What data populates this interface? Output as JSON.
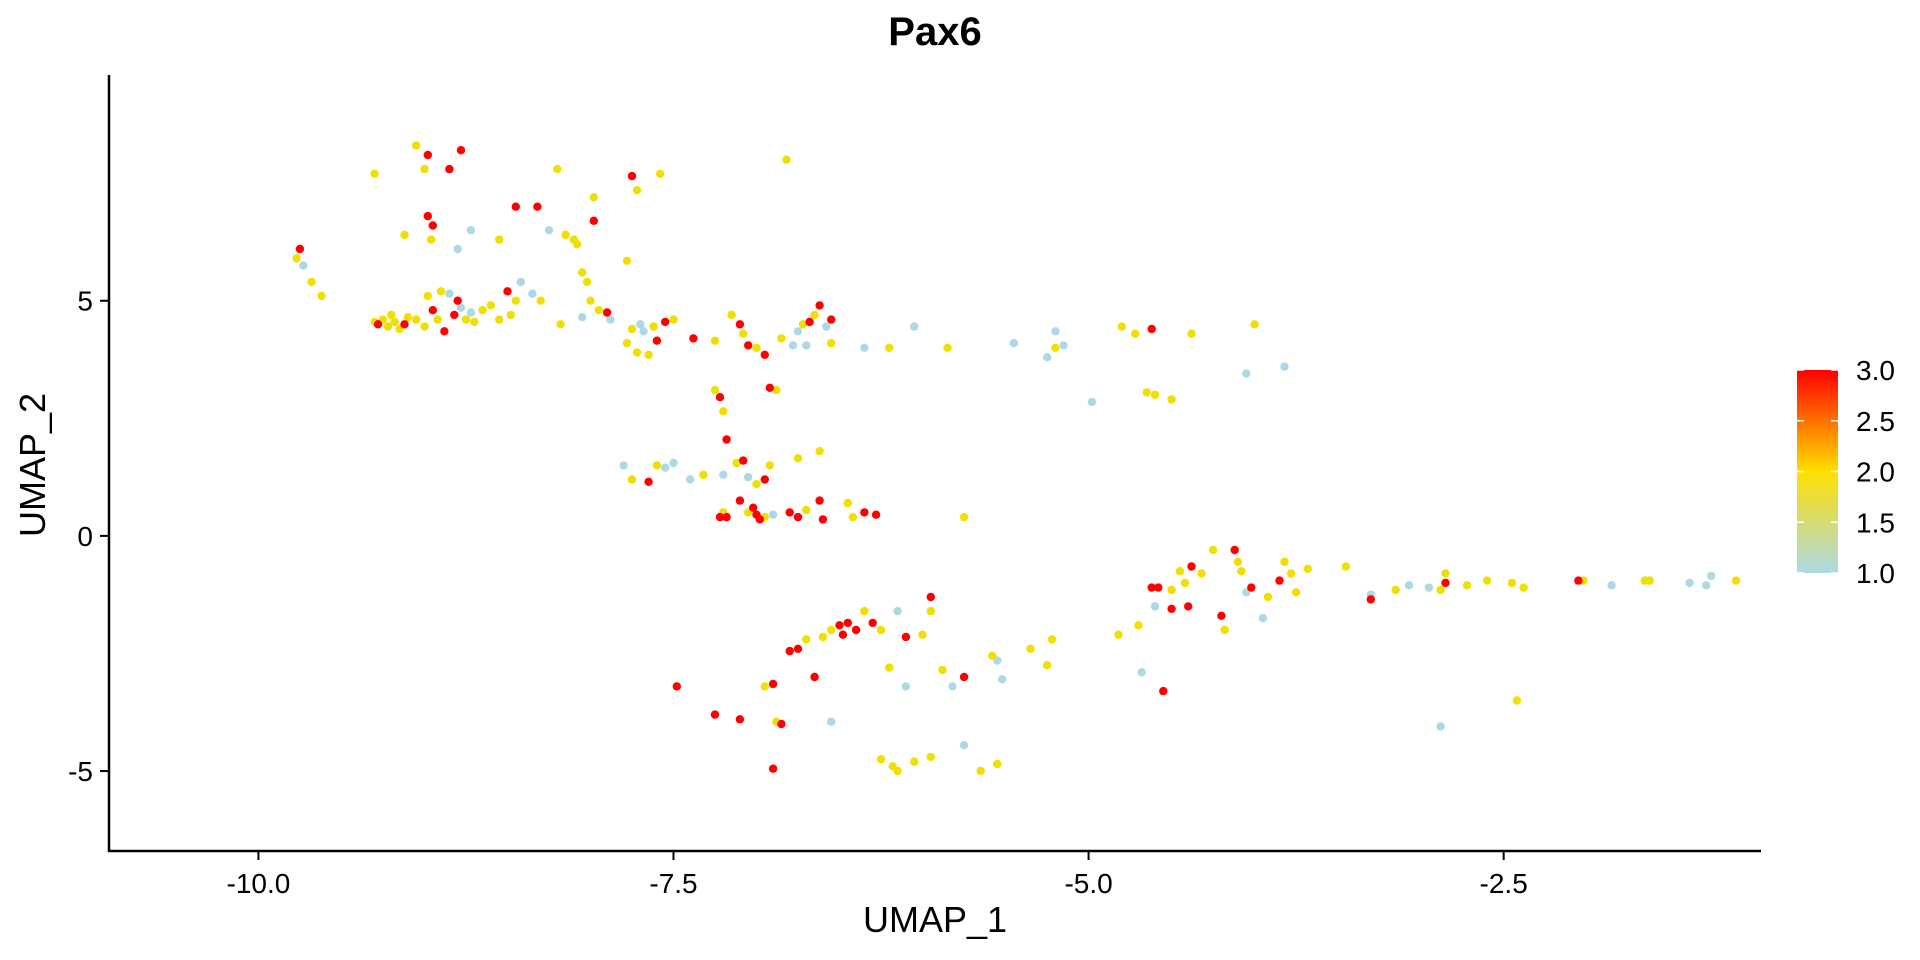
{
  "chart_data": {
    "type": "scatter",
    "title": "Pax6",
    "xlabel": "UMAP_1",
    "ylabel": "UMAP_2",
    "xlim": [
      -10.9,
      -0.95
    ],
    "ylim": [
      -6.7,
      9.8
    ],
    "x_ticks": [
      -10.0,
      -7.5,
      -5.0,
      -2.5
    ],
    "x_tick_labels": [
      "-10.0",
      "-7.5",
      "-5.0",
      "-2.5"
    ],
    "y_ticks": [
      -5,
      0,
      5
    ],
    "y_tick_labels": [
      "-5",
      "0",
      "5"
    ],
    "grid": false,
    "legend": {
      "placement": "right",
      "type": "colorbar",
      "min": 1.0,
      "max": 3.0,
      "tick_values": [
        3.0,
        2.5,
        2.0,
        1.5,
        1.0
      ],
      "tick_labels": [
        "3.0",
        "2.5",
        "2.0",
        "1.5",
        "1.0"
      ],
      "colors": [
        "#add8e6",
        "#ffe000",
        "#ff0000"
      ]
    },
    "point_colors": {
      "low": "#add8e6",
      "mid": "#f0e000",
      "high": "#ff0000"
    },
    "points": [
      {
        "x": -9.77,
        "y": 5.9,
        "v": 2
      },
      {
        "x": -9.75,
        "y": 6.1,
        "v": 3
      },
      {
        "x": -9.73,
        "y": 5.75,
        "v": 1
      },
      {
        "x": -9.68,
        "y": 5.4,
        "v": 2
      },
      {
        "x": -9.62,
        "y": 5.1,
        "v": 2
      },
      {
        "x": -9.3,
        "y": 4.55,
        "v": 2
      },
      {
        "x": -9.28,
        "y": 4.5,
        "v": 3
      },
      {
        "x": -9.25,
        "y": 4.6,
        "v": 2
      },
      {
        "x": -9.22,
        "y": 4.45,
        "v": 2
      },
      {
        "x": -9.2,
        "y": 4.7,
        "v": 2
      },
      {
        "x": -9.18,
        "y": 4.55,
        "v": 2
      },
      {
        "x": -9.15,
        "y": 4.4,
        "v": 2
      },
      {
        "x": -9.12,
        "y": 4.5,
        "v": 3
      },
      {
        "x": -9.1,
        "y": 4.65,
        "v": 2
      },
      {
        "x": -9.05,
        "y": 4.6,
        "v": 2
      },
      {
        "x": -9.0,
        "y": 4.45,
        "v": 2
      },
      {
        "x": -8.98,
        "y": 5.1,
        "v": 2
      },
      {
        "x": -8.95,
        "y": 4.8,
        "v": 3
      },
      {
        "x": -8.92,
        "y": 4.6,
        "v": 2
      },
      {
        "x": -8.9,
        "y": 5.2,
        "v": 2
      },
      {
        "x": -8.88,
        "y": 4.35,
        "v": 3
      },
      {
        "x": -8.85,
        "y": 5.15,
        "v": 1
      },
      {
        "x": -8.82,
        "y": 4.7,
        "v": 3
      },
      {
        "x": -8.8,
        "y": 5.0,
        "v": 3
      },
      {
        "x": -8.78,
        "y": 4.85,
        "v": 1
      },
      {
        "x": -8.75,
        "y": 4.6,
        "v": 2
      },
      {
        "x": -8.72,
        "y": 4.75,
        "v": 1
      },
      {
        "x": -8.7,
        "y": 4.55,
        "v": 2
      },
      {
        "x": -8.65,
        "y": 4.8,
        "v": 2
      },
      {
        "x": -8.6,
        "y": 4.9,
        "v": 2
      },
      {
        "x": -8.55,
        "y": 4.6,
        "v": 2
      },
      {
        "x": -8.5,
        "y": 5.2,
        "v": 3
      },
      {
        "x": -8.48,
        "y": 4.7,
        "v": 2
      },
      {
        "x": -8.45,
        "y": 5.0,
        "v": 2
      },
      {
        "x": -8.42,
        "y": 5.4,
        "v": 1
      },
      {
        "x": -8.35,
        "y": 5.15,
        "v": 1
      },
      {
        "x": -8.3,
        "y": 5.0,
        "v": 2
      },
      {
        "x": -9.3,
        "y": 7.7,
        "v": 2
      },
      {
        "x": -9.05,
        "y": 8.3,
        "v": 2
      },
      {
        "x": -9.0,
        "y": 7.8,
        "v": 2
      },
      {
        "x": -8.98,
        "y": 8.1,
        "v": 3
      },
      {
        "x": -8.85,
        "y": 7.8,
        "v": 3
      },
      {
        "x": -8.78,
        "y": 8.2,
        "v": 3
      },
      {
        "x": -9.12,
        "y": 6.4,
        "v": 2
      },
      {
        "x": -8.98,
        "y": 6.8,
        "v": 3
      },
      {
        "x": -8.95,
        "y": 6.6,
        "v": 3
      },
      {
        "x": -8.96,
        "y": 6.3,
        "v": 2
      },
      {
        "x": -8.8,
        "y": 6.1,
        "v": 1
      },
      {
        "x": -8.72,
        "y": 6.5,
        "v": 1
      },
      {
        "x": -8.55,
        "y": 6.3,
        "v": 2
      },
      {
        "x": -8.45,
        "y": 7.0,
        "v": 3
      },
      {
        "x": -8.32,
        "y": 7.0,
        "v": 3
      },
      {
        "x": -8.25,
        "y": 6.5,
        "v": 1
      },
      {
        "x": -8.2,
        "y": 7.8,
        "v": 2
      },
      {
        "x": -8.15,
        "y": 6.4,
        "v": 2
      },
      {
        "x": -8.1,
        "y": 6.3,
        "v": 2
      },
      {
        "x": -8.08,
        "y": 6.2,
        "v": 2
      },
      {
        "x": -8.05,
        "y": 5.6,
        "v": 2
      },
      {
        "x": -8.02,
        "y": 5.4,
        "v": 2
      },
      {
        "x": -7.98,
        "y": 7.2,
        "v": 2
      },
      {
        "x": -7.98,
        "y": 6.7,
        "v": 3
      },
      {
        "x": -8.0,
        "y": 5.0,
        "v": 2
      },
      {
        "x": -7.95,
        "y": 4.8,
        "v": 2
      },
      {
        "x": -8.18,
        "y": 4.5,
        "v": 2
      },
      {
        "x": -8.05,
        "y": 4.65,
        "v": 1
      },
      {
        "x": -7.9,
        "y": 4.75,
        "v": 3
      },
      {
        "x": -7.88,
        "y": 4.6,
        "v": 1
      },
      {
        "x": -7.78,
        "y": 5.85,
        "v": 2
      },
      {
        "x": -7.75,
        "y": 7.65,
        "v": 3
      },
      {
        "x": -7.72,
        "y": 7.35,
        "v": 2
      },
      {
        "x": -7.58,
        "y": 7.7,
        "v": 2
      },
      {
        "x": -6.82,
        "y": 8.0,
        "v": 2
      },
      {
        "x": -7.78,
        "y": 4.1,
        "v": 2
      },
      {
        "x": -7.75,
        "y": 4.4,
        "v": 2
      },
      {
        "x": -7.72,
        "y": 3.9,
        "v": 2
      },
      {
        "x": -7.7,
        "y": 4.5,
        "v": 1
      },
      {
        "x": -7.68,
        "y": 4.35,
        "v": 1
      },
      {
        "x": -7.65,
        "y": 3.85,
        "v": 2
      },
      {
        "x": -7.62,
        "y": 4.45,
        "v": 2
      },
      {
        "x": -7.6,
        "y": 4.15,
        "v": 3
      },
      {
        "x": -7.55,
        "y": 4.55,
        "v": 3
      },
      {
        "x": -7.5,
        "y": 4.6,
        "v": 2
      },
      {
        "x": -7.38,
        "y": 4.2,
        "v": 3
      },
      {
        "x": -7.25,
        "y": 4.15,
        "v": 2
      },
      {
        "x": -7.15,
        "y": 4.7,
        "v": 2
      },
      {
        "x": -7.1,
        "y": 4.5,
        "v": 3
      },
      {
        "x": -7.08,
        "y": 4.3,
        "v": 2
      },
      {
        "x": -7.05,
        "y": 4.05,
        "v": 3
      },
      {
        "x": -7.0,
        "y": 4.0,
        "v": 2
      },
      {
        "x": -6.95,
        "y": 3.85,
        "v": 3
      },
      {
        "x": -6.85,
        "y": 4.2,
        "v": 2
      },
      {
        "x": -6.78,
        "y": 4.05,
        "v": 1
      },
      {
        "x": -6.75,
        "y": 4.35,
        "v": 1
      },
      {
        "x": -6.72,
        "y": 4.5,
        "v": 2
      },
      {
        "x": -6.7,
        "y": 4.05,
        "v": 1
      },
      {
        "x": -6.68,
        "y": 4.55,
        "v": 3
      },
      {
        "x": -6.65,
        "y": 4.7,
        "v": 2
      },
      {
        "x": -6.62,
        "y": 4.9,
        "v": 3
      },
      {
        "x": -6.55,
        "y": 4.6,
        "v": 3
      },
      {
        "x": -6.58,
        "y": 4.45,
        "v": 1
      },
      {
        "x": -6.55,
        "y": 4.1,
        "v": 2
      },
      {
        "x": -6.35,
        "y": 4.0,
        "v": 1
      },
      {
        "x": -6.2,
        "y": 4.0,
        "v": 2
      },
      {
        "x": -6.05,
        "y": 4.45,
        "v": 1
      },
      {
        "x": -5.85,
        "y": 4.0,
        "v": 2
      },
      {
        "x": -5.45,
        "y": 4.1,
        "v": 1
      },
      {
        "x": -5.25,
        "y": 3.8,
        "v": 1
      },
      {
        "x": -5.2,
        "y": 4.35,
        "v": 1
      },
      {
        "x": -5.2,
        "y": 4.0,
        "v": 2
      },
      {
        "x": -5.15,
        "y": 4.05,
        "v": 1
      },
      {
        "x": -4.98,
        "y": 2.85,
        "v": 1
      },
      {
        "x": -4.8,
        "y": 4.45,
        "v": 2
      },
      {
        "x": -4.72,
        "y": 4.3,
        "v": 2
      },
      {
        "x": -4.62,
        "y": 4.4,
        "v": 3
      },
      {
        "x": -4.65,
        "y": 3.05,
        "v": 2
      },
      {
        "x": -4.6,
        "y": 3.0,
        "v": 2
      },
      {
        "x": -4.5,
        "y": 2.9,
        "v": 2
      },
      {
        "x": -4.38,
        "y": 4.3,
        "v": 2
      },
      {
        "x": -4.0,
        "y": 4.5,
        "v": 2
      },
      {
        "x": -4.05,
        "y": 3.45,
        "v": 1
      },
      {
        "x": -3.82,
        "y": 3.6,
        "v": 1
      },
      {
        "x": -7.25,
        "y": 3.1,
        "v": 2
      },
      {
        "x": -7.22,
        "y": 2.95,
        "v": 3
      },
      {
        "x": -7.2,
        "y": 2.65,
        "v": 2
      },
      {
        "x": -7.18,
        "y": 2.05,
        "v": 3
      },
      {
        "x": -6.92,
        "y": 3.15,
        "v": 3
      },
      {
        "x": -6.88,
        "y": 3.1,
        "v": 2
      },
      {
        "x": -7.8,
        "y": 1.5,
        "v": 1
      },
      {
        "x": -7.75,
        "y": 1.2,
        "v": 2
      },
      {
        "x": -7.65,
        "y": 1.15,
        "v": 3
      },
      {
        "x": -7.6,
        "y": 1.5,
        "v": 2
      },
      {
        "x": -7.55,
        "y": 1.45,
        "v": 1
      },
      {
        "x": -7.5,
        "y": 1.55,
        "v": 1
      },
      {
        "x": -7.4,
        "y": 1.2,
        "v": 1
      },
      {
        "x": -7.32,
        "y": 1.3,
        "v": 2
      },
      {
        "x": -7.2,
        "y": 1.3,
        "v": 1
      },
      {
        "x": -7.12,
        "y": 1.55,
        "v": 2
      },
      {
        "x": -7.08,
        "y": 1.6,
        "v": 3
      },
      {
        "x": -7.05,
        "y": 1.25,
        "v": 1
      },
      {
        "x": -7.0,
        "y": 1.1,
        "v": 2
      },
      {
        "x": -6.95,
        "y": 1.2,
        "v": 3
      },
      {
        "x": -6.92,
        "y": 1.5,
        "v": 2
      },
      {
        "x": -6.75,
        "y": 1.65,
        "v": 2
      },
      {
        "x": -6.62,
        "y": 1.8,
        "v": 2
      },
      {
        "x": -7.22,
        "y": 0.4,
        "v": 3
      },
      {
        "x": -7.2,
        "y": 0.5,
        "v": 2
      },
      {
        "x": -7.18,
        "y": 0.4,
        "v": 3
      },
      {
        "x": -7.1,
        "y": 0.75,
        "v": 3
      },
      {
        "x": -7.05,
        "y": 0.5,
        "v": 2
      },
      {
        "x": -7.02,
        "y": 0.6,
        "v": 3
      },
      {
        "x": -7.0,
        "y": 0.45,
        "v": 3
      },
      {
        "x": -6.98,
        "y": 0.35,
        "v": 3
      },
      {
        "x": -6.95,
        "y": 0.4,
        "v": 2
      },
      {
        "x": -6.9,
        "y": 0.45,
        "v": 1
      },
      {
        "x": -6.8,
        "y": 0.5,
        "v": 3
      },
      {
        "x": -6.75,
        "y": 0.4,
        "v": 3
      },
      {
        "x": -6.7,
        "y": 0.55,
        "v": 2
      },
      {
        "x": -6.62,
        "y": 0.75,
        "v": 3
      },
      {
        "x": -6.6,
        "y": 0.35,
        "v": 3
      },
      {
        "x": -6.45,
        "y": 0.7,
        "v": 2
      },
      {
        "x": -6.42,
        "y": 0.4,
        "v": 2
      },
      {
        "x": -6.35,
        "y": 0.5,
        "v": 3
      },
      {
        "x": -6.28,
        "y": 0.45,
        "v": 3
      },
      {
        "x": -5.75,
        "y": 0.4,
        "v": 2
      },
      {
        "x": -7.48,
        "y": -3.2,
        "v": 3
      },
      {
        "x": -7.25,
        "y": -3.8,
        "v": 3
      },
      {
        "x": -7.1,
        "y": -3.9,
        "v": 3
      },
      {
        "x": -6.95,
        "y": -3.2,
        "v": 2
      },
      {
        "x": -6.9,
        "y": -3.15,
        "v": 3
      },
      {
        "x": -6.88,
        "y": -3.95,
        "v": 2
      },
      {
        "x": -6.85,
        "y": -4.0,
        "v": 3
      },
      {
        "x": -6.9,
        "y": -4.95,
        "v": 3
      },
      {
        "x": -6.8,
        "y": -2.45,
        "v": 3
      },
      {
        "x": -6.75,
        "y": -2.4,
        "v": 3
      },
      {
        "x": -6.7,
        "y": -2.2,
        "v": 2
      },
      {
        "x": -6.65,
        "y": -3.0,
        "v": 3
      },
      {
        "x": -6.6,
        "y": -2.15,
        "v": 2
      },
      {
        "x": -6.55,
        "y": -2.0,
        "v": 2
      },
      {
        "x": -6.5,
        "y": -1.9,
        "v": 3
      },
      {
        "x": -6.45,
        "y": -1.85,
        "v": 3
      },
      {
        "x": -6.4,
        "y": -2.0,
        "v": 3
      },
      {
        "x": -6.48,
        "y": -2.1,
        "v": 3
      },
      {
        "x": -6.35,
        "y": -1.6,
        "v": 2
      },
      {
        "x": -6.3,
        "y": -1.85,
        "v": 3
      },
      {
        "x": -6.25,
        "y": -2.0,
        "v": 2
      },
      {
        "x": -6.2,
        "y": -2.8,
        "v": 2
      },
      {
        "x": -6.15,
        "y": -1.6,
        "v": 1
      },
      {
        "x": -6.1,
        "y": -2.15,
        "v": 3
      },
      {
        "x": -6.0,
        "y": -2.1,
        "v": 2
      },
      {
        "x": -5.95,
        "y": -1.6,
        "v": 2
      },
      {
        "x": -5.95,
        "y": -1.3,
        "v": 3
      },
      {
        "x": -5.88,
        "y": -2.85,
        "v": 2
      },
      {
        "x": -5.82,
        "y": -3.2,
        "v": 1
      },
      {
        "x": -5.75,
        "y": -3.0,
        "v": 3
      },
      {
        "x": -6.55,
        "y": -3.95,
        "v": 1
      },
      {
        "x": -6.1,
        "y": -3.2,
        "v": 1
      },
      {
        "x": -6.25,
        "y": -4.75,
        "v": 2
      },
      {
        "x": -6.18,
        "y": -4.9,
        "v": 2
      },
      {
        "x": -6.15,
        "y": -5.0,
        "v": 2
      },
      {
        "x": -6.05,
        "y": -4.8,
        "v": 2
      },
      {
        "x": -5.95,
        "y": -4.7,
        "v": 2
      },
      {
        "x": -5.75,
        "y": -4.45,
        "v": 1
      },
      {
        "x": -5.65,
        "y": -5.0,
        "v": 2
      },
      {
        "x": -5.55,
        "y": -4.85,
        "v": 2
      },
      {
        "x": -5.58,
        "y": -2.55,
        "v": 2
      },
      {
        "x": -5.55,
        "y": -2.65,
        "v": 1
      },
      {
        "x": -5.52,
        "y": -3.05,
        "v": 1
      },
      {
        "x": -5.35,
        "y": -2.4,
        "v": 2
      },
      {
        "x": -5.25,
        "y": -2.75,
        "v": 2
      },
      {
        "x": -5.22,
        "y": -2.2,
        "v": 2
      },
      {
        "x": -4.82,
        "y": -2.1,
        "v": 2
      },
      {
        "x": -4.7,
        "y": -1.9,
        "v": 2
      },
      {
        "x": -4.68,
        "y": -2.9,
        "v": 1
      },
      {
        "x": -4.55,
        "y": -3.3,
        "v": 3
      },
      {
        "x": -4.62,
        "y": -1.1,
        "v": 3
      },
      {
        "x": -4.58,
        "y": -1.1,
        "v": 3
      },
      {
        "x": -4.6,
        "y": -1.5,
        "v": 1
      },
      {
        "x": -4.5,
        "y": -1.15,
        "v": 2
      },
      {
        "x": -4.5,
        "y": -1.55,
        "v": 3
      },
      {
        "x": -4.45,
        "y": -0.75,
        "v": 2
      },
      {
        "x": -4.42,
        "y": -1.0,
        "v": 2
      },
      {
        "x": -4.4,
        "y": -1.5,
        "v": 3
      },
      {
        "x": -4.38,
        "y": -0.65,
        "v": 3
      },
      {
        "x": -4.32,
        "y": -0.8,
        "v": 2
      },
      {
        "x": -4.25,
        "y": -0.3,
        "v": 2
      },
      {
        "x": -4.2,
        "y": -1.7,
        "v": 3
      },
      {
        "x": -4.18,
        "y": -2.0,
        "v": 2
      },
      {
        "x": -4.12,
        "y": -0.3,
        "v": 3
      },
      {
        "x": -4.1,
        "y": -0.55,
        "v": 2
      },
      {
        "x": -4.08,
        "y": -0.75,
        "v": 2
      },
      {
        "x": -4.05,
        "y": -1.2,
        "v": 1
      },
      {
        "x": -4.02,
        "y": -1.1,
        "v": 3
      },
      {
        "x": -3.95,
        "y": -1.75,
        "v": 1
      },
      {
        "x": -3.92,
        "y": -1.3,
        "v": 2
      },
      {
        "x": -3.85,
        "y": -0.95,
        "v": 3
      },
      {
        "x": -3.82,
        "y": -0.55,
        "v": 2
      },
      {
        "x": -3.78,
        "y": -0.8,
        "v": 2
      },
      {
        "x": -3.75,
        "y": -1.2,
        "v": 2
      },
      {
        "x": -3.68,
        "y": -0.7,
        "v": 2
      },
      {
        "x": -3.45,
        "y": -0.65,
        "v": 2
      },
      {
        "x": -3.3,
        "y": -1.35,
        "v": 3
      },
      {
        "x": -3.3,
        "y": -1.25,
        "v": 1
      },
      {
        "x": -3.15,
        "y": -1.15,
        "v": 2
      },
      {
        "x": -3.07,
        "y": -1.05,
        "v": 1
      },
      {
        "x": -2.95,
        "y": -1.1,
        "v": 1
      },
      {
        "x": -2.88,
        "y": -1.15,
        "v": 2
      },
      {
        "x": -2.85,
        "y": -1.0,
        "v": 3
      },
      {
        "x": -2.85,
        "y": -0.8,
        "v": 2
      },
      {
        "x": -2.72,
        "y": -1.05,
        "v": 2
      },
      {
        "x": -2.6,
        "y": -0.95,
        "v": 2
      },
      {
        "x": -2.45,
        "y": -1.0,
        "v": 2
      },
      {
        "x": -2.38,
        "y": -1.1,
        "v": 2
      },
      {
        "x": -2.05,
        "y": -0.95,
        "v": 3
      },
      {
        "x": -2.02,
        "y": -0.95,
        "v": 2
      },
      {
        "x": -1.85,
        "y": -1.05,
        "v": 1
      },
      {
        "x": -1.65,
        "y": -0.95,
        "v": 2
      },
      {
        "x": -1.62,
        "y": -0.95,
        "v": 2
      },
      {
        "x": -1.38,
        "y": -1.0,
        "v": 1
      },
      {
        "x": -1.28,
        "y": -1.05,
        "v": 1
      },
      {
        "x": -1.25,
        "y": -0.85,
        "v": 1
      },
      {
        "x": -1.1,
        "y": -0.95,
        "v": 2
      },
      {
        "x": -2.42,
        "y": -3.5,
        "v": 2
      },
      {
        "x": -2.88,
        "y": -4.05,
        "v": 1
      }
    ]
  }
}
